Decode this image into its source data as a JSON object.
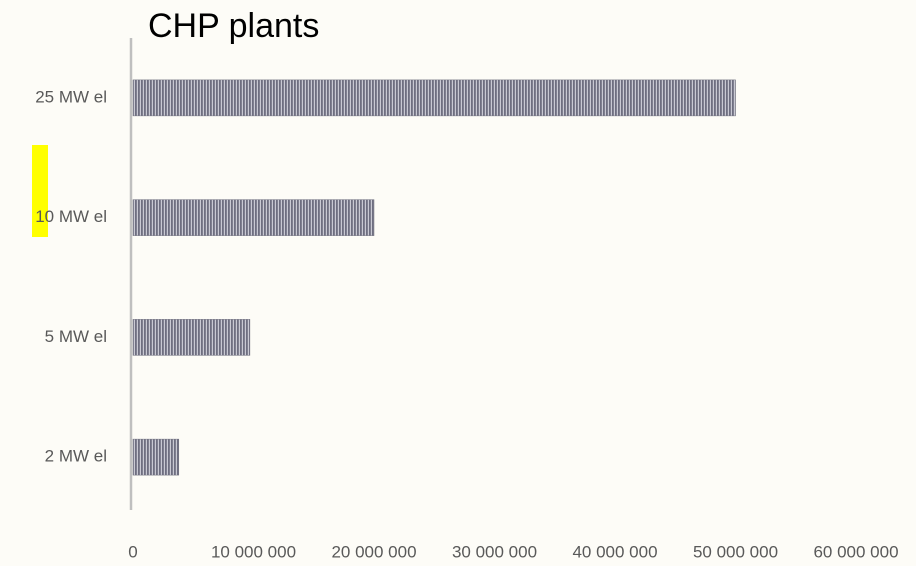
{
  "chart_data": {
    "type": "barh",
    "title": "CHP plants",
    "categories": [
      "25 MW el",
      "10 MW el",
      "5 MW el",
      "2 MW el"
    ],
    "values": [
      50000000,
      20000000,
      9700000,
      3800000
    ],
    "color": "#70707f",
    "xlim": [
      0,
      60000000
    ],
    "xticks": [
      0,
      {
        "value": 10000000,
        "label": "10 000 000"
      },
      {
        "value": 20000000,
        "label": "20 000 000"
      },
      {
        "value": 30000000,
        "label": "30 000 000"
      },
      {
        "value": 40000000,
        "label": "40 000 000"
      },
      {
        "value": 50000000,
        "label": "50 000 000"
      },
      {
        "value": 60000000,
        "label": "60 000 000"
      }
    ],
    "grid": false
  }
}
